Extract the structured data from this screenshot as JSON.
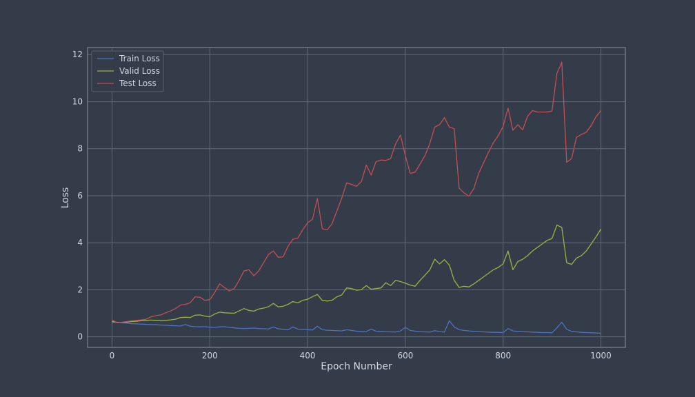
{
  "chart_data": {
    "type": "line",
    "title": "",
    "xlabel": "Epoch Number",
    "ylabel": "Loss",
    "xlim": [
      -50,
      1050
    ],
    "ylim": [
      -0.45,
      12.3
    ],
    "xticks": [
      0,
      200,
      400,
      600,
      800,
      1000
    ],
    "yticks": [
      0,
      2,
      4,
      6,
      8,
      10,
      12
    ],
    "grid": true,
    "legend_position": "top-left",
    "colors": {
      "background": "#353c49",
      "axes_face": "#353c49",
      "grid": "#5f6878",
      "frame": "#8a93a3"
    },
    "x": [
      0,
      10,
      20,
      30,
      40,
      50,
      60,
      70,
      80,
      90,
      100,
      110,
      120,
      130,
      140,
      150,
      160,
      170,
      180,
      190,
      200,
      210,
      220,
      230,
      240,
      250,
      260,
      270,
      280,
      290,
      300,
      310,
      320,
      330,
      340,
      350,
      360,
      370,
      380,
      390,
      400,
      410,
      420,
      430,
      440,
      450,
      460,
      470,
      480,
      490,
      500,
      510,
      520,
      530,
      540,
      550,
      560,
      570,
      580,
      590,
      600,
      610,
      620,
      630,
      640,
      650,
      660,
      670,
      680,
      690,
      700,
      710,
      720,
      730,
      740,
      750,
      760,
      770,
      780,
      790,
      800,
      810,
      820,
      830,
      840,
      850,
      860,
      870,
      880,
      890,
      900,
      910,
      920,
      930,
      940,
      950,
      960,
      970,
      980,
      990,
      1000
    ],
    "series": [
      {
        "name": "Train Loss",
        "color": "#4c72c4",
        "values": [
          0.62,
          0.61,
          0.6,
          0.58,
          0.56,
          0.55,
          0.54,
          0.53,
          0.52,
          0.51,
          0.5,
          0.49,
          0.48,
          0.47,
          0.46,
          0.52,
          0.45,
          0.43,
          0.42,
          0.43,
          0.41,
          0.4,
          0.42,
          0.43,
          0.4,
          0.38,
          0.36,
          0.35,
          0.36,
          0.37,
          0.35,
          0.34,
          0.33,
          0.42,
          0.34,
          0.32,
          0.3,
          0.42,
          0.33,
          0.31,
          0.3,
          0.29,
          0.45,
          0.3,
          0.28,
          0.27,
          0.26,
          0.25,
          0.3,
          0.27,
          0.24,
          0.23,
          0.22,
          0.33,
          0.24,
          0.23,
          0.22,
          0.21,
          0.2,
          0.25,
          0.4,
          0.27,
          0.24,
          0.22,
          0.21,
          0.2,
          0.26,
          0.22,
          0.2,
          0.68,
          0.42,
          0.3,
          0.27,
          0.25,
          0.23,
          0.22,
          0.21,
          0.2,
          0.19,
          0.19,
          0.18,
          0.35,
          0.25,
          0.23,
          0.22,
          0.21,
          0.2,
          0.19,
          0.18,
          0.18,
          0.17,
          0.38,
          0.62,
          0.32,
          0.23,
          0.21,
          0.19,
          0.18,
          0.17,
          0.16,
          0.15
        ]
      },
      {
        "name": "Valid Loss",
        "color": "#9bb43e",
        "values": [
          0.65,
          0.62,
          0.61,
          0.62,
          0.65,
          0.66,
          0.68,
          0.7,
          0.71,
          0.7,
          0.69,
          0.7,
          0.72,
          0.75,
          0.82,
          0.83,
          0.82,
          0.92,
          0.93,
          0.88,
          0.85,
          0.97,
          1.05,
          1.02,
          1.01,
          1.0,
          1.1,
          1.2,
          1.12,
          1.09,
          1.18,
          1.22,
          1.28,
          1.42,
          1.27,
          1.3,
          1.38,
          1.5,
          1.44,
          1.55,
          1.6,
          1.7,
          1.8,
          1.55,
          1.52,
          1.55,
          1.7,
          1.78,
          2.08,
          2.05,
          1.98,
          2.0,
          2.18,
          2.02,
          2.05,
          2.08,
          2.3,
          2.18,
          2.4,
          2.35,
          2.28,
          2.2,
          2.15,
          2.4,
          2.62,
          2.85,
          3.3,
          3.1,
          3.28,
          3.05,
          2.4,
          2.1,
          2.15,
          2.12,
          2.25,
          2.4,
          2.55,
          2.7,
          2.85,
          2.95,
          3.1,
          3.65,
          2.85,
          3.2,
          3.3,
          3.45,
          3.65,
          3.8,
          3.95,
          4.1,
          4.18,
          4.75,
          4.65,
          3.15,
          3.08,
          3.35,
          3.45,
          3.65,
          3.95,
          4.25,
          4.58
        ]
      },
      {
        "name": "Test Loss",
        "color": "#c44e52",
        "values": [
          0.72,
          0.6,
          0.62,
          0.65,
          0.68,
          0.7,
          0.72,
          0.75,
          0.85,
          0.9,
          0.93,
          1.02,
          1.1,
          1.2,
          1.35,
          1.38,
          1.45,
          1.7,
          1.68,
          1.55,
          1.58,
          1.88,
          2.25,
          2.1,
          1.95,
          2.05,
          2.4,
          2.8,
          2.85,
          2.6,
          2.8,
          3.15,
          3.5,
          3.65,
          3.38,
          3.4,
          3.85,
          4.15,
          4.2,
          4.55,
          4.85,
          5.0,
          5.88,
          4.6,
          4.55,
          4.8,
          5.35,
          5.9,
          6.55,
          6.48,
          6.4,
          6.6,
          7.3,
          6.88,
          7.45,
          7.52,
          7.5,
          7.58,
          8.2,
          8.58,
          7.7,
          6.95,
          7.0,
          7.35,
          7.7,
          8.22,
          8.92,
          9.02,
          9.32,
          8.92,
          8.85,
          6.32,
          6.12,
          5.98,
          6.3,
          6.95,
          7.4,
          7.85,
          8.25,
          8.55,
          8.95,
          9.72,
          8.78,
          9.02,
          8.8,
          9.38,
          9.62,
          9.56,
          9.56,
          9.56,
          9.6,
          11.2,
          11.68,
          7.42,
          7.58,
          8.48,
          8.6,
          8.7,
          8.98,
          9.36,
          9.62
        ]
      }
    ]
  }
}
